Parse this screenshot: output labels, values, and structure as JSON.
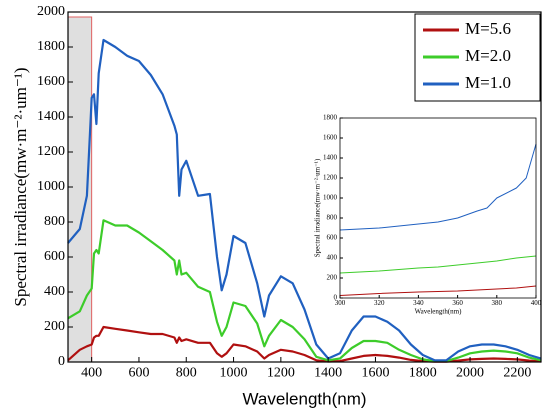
{
  "chart_data": [
    {
      "type": "line",
      "x_label": "Wavelength(nm)",
      "y_label": "Spectral irradiance(mw·m⁻²·um⁻¹)",
      "x": [
        300,
        350,
        380,
        400,
        410,
        420,
        430,
        450,
        500,
        550,
        600,
        650,
        700,
        750,
        760,
        770,
        780,
        800,
        850,
        900,
        930,
        950,
        970,
        1000,
        1050,
        1100,
        1130,
        1150,
        1200,
        1250,
        1300,
        1350,
        1400,
        1450,
        1500,
        1550,
        1600,
        1650,
        1700,
        1750,
        1800,
        1850,
        1900,
        1950,
        2000,
        2050,
        2100,
        2150,
        2200,
        2250,
        2300
      ],
      "series": [
        {
          "name": "M=5.6",
          "color": "#b01010",
          "values": [
            10,
            70,
            90,
            100,
            140,
            150,
            150,
            200,
            190,
            180,
            170,
            160,
            160,
            140,
            110,
            140,
            120,
            130,
            110,
            110,
            50,
            30,
            50,
            100,
            90,
            60,
            20,
            40,
            70,
            60,
            40,
            10,
            3,
            5,
            20,
            35,
            40,
            35,
            25,
            12,
            5,
            2,
            2,
            8,
            15,
            18,
            20,
            18,
            15,
            8,
            3
          ]
        },
        {
          "name": "M=2.0",
          "color": "#3dcc2a",
          "values": [
            250,
            290,
            380,
            420,
            620,
            640,
            620,
            810,
            780,
            780,
            740,
            690,
            640,
            580,
            500,
            580,
            500,
            510,
            430,
            400,
            230,
            150,
            200,
            340,
            320,
            220,
            90,
            150,
            240,
            200,
            130,
            30,
            10,
            20,
            80,
            120,
            120,
            110,
            70,
            40,
            15,
            5,
            5,
            25,
            50,
            60,
            65,
            60,
            50,
            25,
            10
          ]
        },
        {
          "name": "M=1.0",
          "color": "#2060c0",
          "values": [
            680,
            760,
            950,
            1510,
            1530,
            1360,
            1650,
            1840,
            1800,
            1750,
            1720,
            1640,
            1530,
            1350,
            1300,
            950,
            1100,
            1150,
            950,
            960,
            600,
            410,
            500,
            720,
            680,
            450,
            260,
            380,
            490,
            450,
            300,
            100,
            20,
            50,
            180,
            260,
            260,
            230,
            180,
            100,
            40,
            10,
            10,
            60,
            90,
            100,
            100,
            90,
            70,
            40,
            20
          ]
        }
      ],
      "xlim": [
        300,
        2300
      ],
      "xticks": [
        400,
        600,
        800,
        1000,
        1200,
        1400,
        1600,
        1800,
        2000,
        2200
      ],
      "ylim": [
        0,
        2000
      ],
      "yticks": [
        0,
        200,
        400,
        600,
        800,
        1000,
        1200,
        1400,
        1600,
        1800,
        2000
      ],
      "legend": "upper right"
    },
    {
      "type": "line",
      "x_label": "Wavelength(nm)",
      "y_label": "Spectral irradiance(mw·m⁻²·um⁻¹)",
      "x": [
        300,
        320,
        340,
        350,
        360,
        370,
        375,
        380,
        390,
        395,
        400
      ],
      "series": [
        {
          "name": "M=5.6",
          "color": "#b01010",
          "values": [
            25,
            45,
            60,
            65,
            70,
            80,
            85,
            90,
            100,
            110,
            120
          ]
        },
        {
          "name": "M=2.0",
          "color": "#3dcc2a",
          "values": [
            250,
            270,
            300,
            310,
            330,
            350,
            360,
            370,
            400,
            410,
            420
          ]
        },
        {
          "name": "M=1.0",
          "color": "#2060c0",
          "values": [
            680,
            700,
            740,
            760,
            800,
            870,
            900,
            1000,
            1100,
            1200,
            1540
          ]
        }
      ],
      "xlim": [
        300,
        400
      ],
      "xticks": [
        300,
        320,
        340,
        360,
        380,
        400
      ],
      "ylim": [
        0,
        1800
      ],
      "yticks": [
        0,
        200,
        400,
        600,
        800,
        1000,
        1200,
        1400,
        1600,
        1800
      ]
    }
  ]
}
